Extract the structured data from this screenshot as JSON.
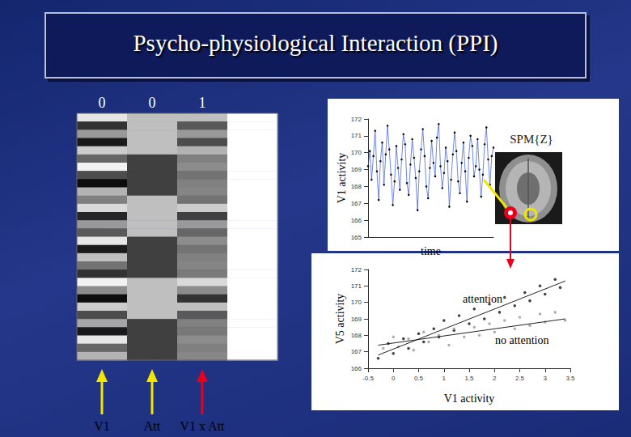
{
  "title": "Psycho-physiological Interaction (PPI)",
  "design_matrix": {
    "contrast": [
      0,
      0,
      1
    ],
    "labels": [
      "V1",
      "Att",
      "V1 x Att"
    ],
    "cells": [
      [
        0.9,
        0.75,
        0.75,
        1
      ],
      [
        0.2,
        0.75,
        0.35,
        1
      ],
      [
        0.6,
        0.75,
        0.6,
        1
      ],
      [
        0.1,
        0.75,
        0.3,
        1
      ],
      [
        0.8,
        0.75,
        0.7,
        1
      ],
      [
        0.4,
        0.25,
        0.5,
        1
      ],
      [
        0.95,
        0.25,
        0.55,
        1
      ],
      [
        0.3,
        0.25,
        0.45,
        1
      ],
      [
        0.05,
        0.25,
        0.5,
        1
      ],
      [
        0.7,
        0.25,
        0.52,
        1
      ],
      [
        0.5,
        0.75,
        0.45,
        1
      ],
      [
        0.85,
        0.75,
        0.8,
        1
      ],
      [
        0.15,
        0.75,
        0.25,
        1
      ],
      [
        0.6,
        0.75,
        0.6,
        1
      ],
      [
        0.35,
        0.75,
        0.4,
        1
      ],
      [
        0.9,
        0.25,
        0.55,
        1
      ],
      [
        0.1,
        0.25,
        0.45,
        1
      ],
      [
        0.75,
        0.25,
        0.5,
        1
      ],
      [
        0.45,
        0.25,
        0.52,
        1
      ],
      [
        0.2,
        0.25,
        0.48,
        1
      ],
      [
        0.95,
        0.75,
        0.85,
        1
      ],
      [
        0.55,
        0.75,
        0.55,
        1
      ],
      [
        0.05,
        0.75,
        0.2,
        1
      ],
      [
        0.8,
        0.75,
        0.75,
        1
      ],
      [
        0.3,
        0.75,
        0.35,
        1
      ],
      [
        0.65,
        0.25,
        0.5,
        1
      ],
      [
        0.1,
        0.25,
        0.47,
        1
      ],
      [
        0.9,
        0.25,
        0.55,
        1
      ],
      [
        0.4,
        0.25,
        0.5,
        1
      ],
      [
        0.7,
        0.25,
        0.53,
        1
      ]
    ]
  },
  "brain_label": "SPM{Z}",
  "chart_data": [
    {
      "type": "line",
      "x_label": "time",
      "y_label": "V1 activity",
      "color": "#3355cc",
      "marker": "circle",
      "grid": false,
      "tick_labels": "y",
      "xlim": [
        0,
        71
      ],
      "ylim": [
        165,
        172
      ],
      "yticks": [
        165,
        166,
        167,
        168,
        169,
        170,
        171,
        172
      ],
      "x": [
        0,
        1,
        2,
        3,
        4,
        5,
        6,
        7,
        8,
        9,
        10,
        11,
        12,
        13,
        14,
        15,
        16,
        17,
        18,
        19,
        20,
        21,
        22,
        23,
        24,
        25,
        26,
        27,
        28,
        29,
        30,
        31,
        32,
        33,
        34,
        35,
        36,
        37,
        38,
        39,
        40,
        41,
        42,
        43,
        44,
        45,
        46,
        47,
        48,
        49,
        50,
        51,
        52,
        53,
        54,
        55,
        56,
        57,
        58,
        59,
        60,
        61,
        62,
        63,
        64,
        65,
        66,
        67,
        68,
        69,
        70,
        71
      ],
      "values": [
        169.2,
        170.1,
        168.4,
        169.8,
        171.3,
        168.9,
        167.2,
        169.5,
        170.6,
        168.1,
        169.9,
        171.6,
        170.2,
        168.7,
        166.9,
        168.3,
        170.4,
        169.1,
        167.8,
        169.6,
        171.1,
        170.5,
        168.2,
        167.5,
        169.3,
        170.8,
        169.7,
        168.5,
        166.6,
        168.9,
        170.2,
        171.4,
        169.8,
        168.0,
        167.3,
        169.1,
        170.7,
        169.4,
        168.6,
        170.9,
        171.7,
        169.2,
        167.9,
        168.8,
        170.3,
        169.5,
        166.8,
        168.4,
        169.9,
        171.2,
        170.1,
        168.3,
        167.6,
        169.4,
        170.6,
        168.9,
        167.1,
        169.7,
        171.0,
        170.4,
        168.6,
        169.2,
        170.8,
        169.0,
        167.4,
        168.7,
        170.5,
        171.5,
        169.6,
        168.1,
        169.8,
        170.3
      ]
    },
    {
      "type": "scatter",
      "x_label": "V1 activity",
      "y_label": "V5 activity",
      "marker": "circle",
      "grid": false,
      "xlim": [
        -0.5,
        3.5
      ],
      "xticks": [
        -0.5,
        0,
        0.5,
        1,
        1.5,
        2,
        2.5,
        3,
        3.5
      ],
      "ylim": [
        166,
        172
      ],
      "yticks": [
        166,
        167,
        168,
        169,
        170,
        171,
        172
      ],
      "series": [
        {
          "name": "attention",
          "color": "#111111",
          "x": [
            -0.3,
            -0.1,
            0.0,
            0.2,
            0.3,
            0.5,
            0.6,
            0.8,
            0.9,
            1.0,
            1.2,
            1.3,
            1.5,
            1.6,
            1.8,
            1.9,
            2.1,
            2.2,
            2.4,
            2.6,
            2.7,
            2.9,
            3.0,
            3.2,
            3.3
          ],
          "values": [
            166.6,
            167.5,
            166.9,
            167.8,
            167.2,
            168.1,
            167.6,
            168.4,
            167.9,
            168.9,
            168.3,
            169.2,
            168.7,
            169.6,
            169.0,
            169.9,
            169.4,
            170.3,
            169.8,
            170.6,
            170.1,
            171.0,
            170.5,
            171.4,
            170.9
          ],
          "fit_x": [
            -0.3,
            3.4
          ],
          "fit_y": [
            166.8,
            171.3
          ]
        },
        {
          "name": "no attention",
          "color": "#9a9a9a",
          "x": [
            -0.2,
            0.0,
            0.1,
            0.3,
            0.4,
            0.6,
            0.7,
            0.9,
            1.1,
            1.2,
            1.4,
            1.6,
            1.7,
            1.9,
            2.0,
            2.2,
            2.4,
            2.5,
            2.7,
            2.9,
            3.0,
            3.2,
            3.4
          ],
          "values": [
            167.2,
            167.9,
            167.3,
            167.8,
            167.1,
            168.2,
            167.6,
            168.0,
            167.4,
            168.4,
            167.9,
            168.5,
            168.0,
            168.7,
            168.2,
            168.9,
            168.4,
            169.1,
            168.6,
            169.3,
            168.8,
            169.4,
            168.9
          ],
          "fit_x": [
            -0.3,
            3.4
          ],
          "fit_y": [
            167.4,
            169.0
          ]
        }
      ]
    }
  ]
}
